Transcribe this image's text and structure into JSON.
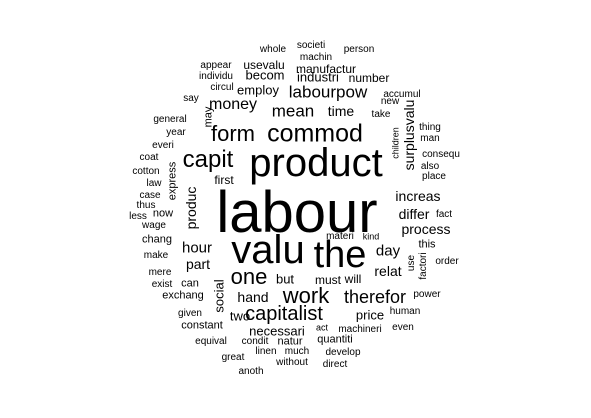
{
  "words": [
    "labour",
    "valu",
    "product",
    "the",
    "commod",
    "capit",
    "one",
    "work",
    "form",
    "capitalist",
    "therefor",
    "labourpow",
    "mean",
    "money",
    "hour",
    "day",
    "increas",
    "differ",
    "process",
    "time",
    "relat",
    "surplusvalu",
    "part",
    "hand",
    "produc",
    "social",
    "but",
    "must",
    "will",
    "price",
    "necessari",
    "two",
    "first",
    "becom",
    "employ",
    "industri",
    "number",
    "manufactur",
    "usevalu",
    "whole",
    "societi",
    "person",
    "machin",
    "appear",
    "individu",
    "circul",
    "accumul",
    "new",
    "say",
    "may",
    "take",
    "general",
    "year",
    "thing",
    "man",
    "everi",
    "children",
    "consequ",
    "coat",
    "also",
    "cotton",
    "express",
    "place",
    "law",
    "case",
    "thus",
    "now",
    "less",
    "fact",
    "wage",
    "materi",
    "kind",
    "chang",
    "this",
    "make",
    "use",
    "factori",
    "order",
    "mere",
    "can",
    "exist",
    "exchang",
    "power",
    "given",
    "human",
    "constant",
    "act",
    "machineri",
    "even",
    "equival",
    "condit",
    "natur",
    "quantiti",
    "great",
    "linen",
    "much",
    "develop",
    "without",
    "direct",
    "anoth"
  ]
}
